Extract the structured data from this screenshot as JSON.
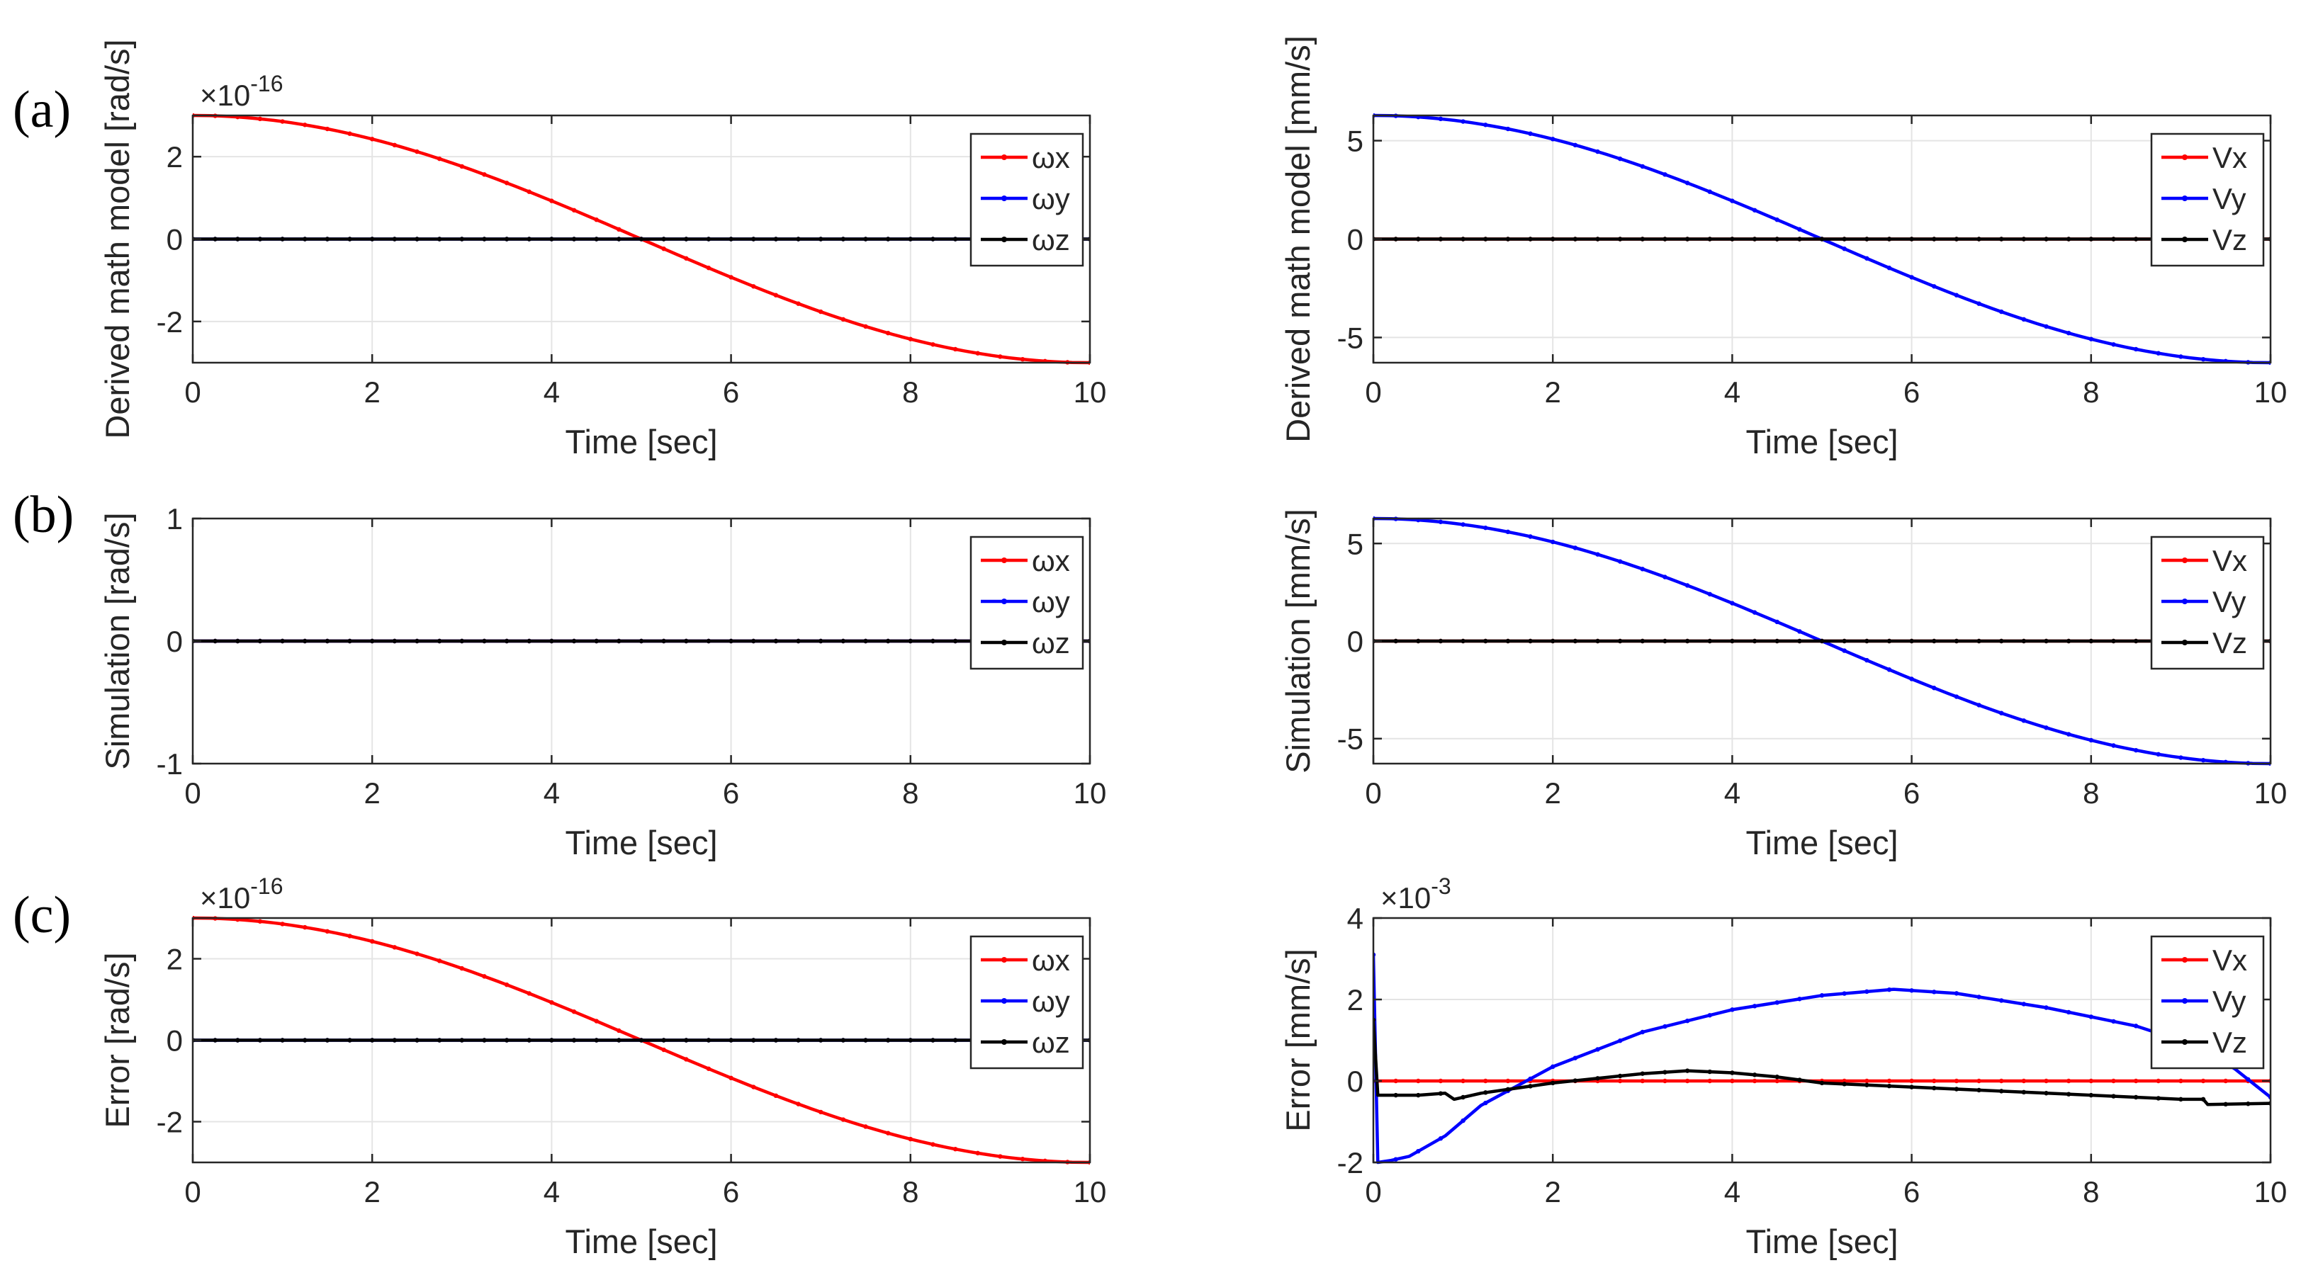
{
  "panel_labels": [
    "(a)",
    "(b)",
    "(c)"
  ],
  "chart_data": [
    {
      "type": "line",
      "title": "",
      "xlabel": "Time [sec]",
      "ylabel": "Derived math model [rad/s]",
      "exponent": "×10-16",
      "xlim": [
        0,
        10
      ],
      "ylim": [
        -3,
        3
      ],
      "xticks": [
        "0",
        "2",
        "4",
        "6",
        "8",
        "10"
      ],
      "yticks": [
        {
          "v": -2,
          "label": "-2"
        },
        {
          "v": 0,
          "label": "0"
        },
        {
          "v": 2,
          "label": "2"
        }
      ],
      "legend": [
        "ωx",
        "ωy",
        "ωz"
      ],
      "series": [
        {
          "name": "ωx",
          "color": "#ff0000",
          "kind": "cos",
          "amp": 3
        },
        {
          "name": "ωy",
          "color": "#0000ff",
          "kind": "zero"
        },
        {
          "name": "ωz",
          "color": "#000000",
          "kind": "zero"
        }
      ]
    },
    {
      "type": "line",
      "title": "",
      "xlabel": "Time [sec]",
      "ylabel": "Derived math model [mm/s]",
      "exponent": "",
      "xlim": [
        0,
        10
      ],
      "ylim": [
        -6.28,
        6.28
      ],
      "xticks": [
        "0",
        "2",
        "4",
        "6",
        "8",
        "10"
      ],
      "yticks": [
        {
          "v": -5,
          "label": "-5"
        },
        {
          "v": 0,
          "label": "0"
        },
        {
          "v": 5,
          "label": "5"
        }
      ],
      "legend": [
        "Vx",
        "Vy",
        "Vz"
      ],
      "series": [
        {
          "name": "Vx",
          "color": "#ff0000",
          "kind": "zero"
        },
        {
          "name": "Vy",
          "color": "#0000ff",
          "kind": "cos",
          "amp": 6.28
        },
        {
          "name": "Vz",
          "color": "#000000",
          "kind": "zero"
        }
      ]
    },
    {
      "type": "line",
      "title": "",
      "xlabel": "Time [sec]",
      "ylabel": "Simulation [rad/s]",
      "exponent": "",
      "xlim": [
        0,
        10
      ],
      "ylim": [
        -1,
        1
      ],
      "xticks": [
        "0",
        "2",
        "4",
        "6",
        "8",
        "10"
      ],
      "yticks": [
        {
          "v": -1,
          "label": "-1"
        },
        {
          "v": 0,
          "label": "0"
        },
        {
          "v": 1,
          "label": "1"
        }
      ],
      "legend": [
        "ωx",
        "ωy",
        "ωz"
      ],
      "series": [
        {
          "name": "ωx",
          "color": "#ff0000",
          "kind": "zero"
        },
        {
          "name": "ωy",
          "color": "#0000ff",
          "kind": "zero"
        },
        {
          "name": "ωz",
          "color": "#000000",
          "kind": "zero"
        }
      ]
    },
    {
      "type": "line",
      "title": "",
      "xlabel": "Time [sec]",
      "ylabel": "Simulation [mm/s]",
      "exponent": "",
      "xlim": [
        0,
        10
      ],
      "ylim": [
        -6.28,
        6.28
      ],
      "xticks": [
        "0",
        "2",
        "4",
        "6",
        "8",
        "10"
      ],
      "yticks": [
        {
          "v": -5,
          "label": "-5"
        },
        {
          "v": 0,
          "label": "0"
        },
        {
          "v": 5,
          "label": "5"
        }
      ],
      "legend": [
        "Vx",
        "Vy",
        "Vz"
      ],
      "series": [
        {
          "name": "Vx",
          "color": "#ff0000",
          "kind": "zero"
        },
        {
          "name": "Vy",
          "color": "#0000ff",
          "kind": "cos",
          "amp": 6.28
        },
        {
          "name": "Vz",
          "color": "#000000",
          "kind": "zero"
        }
      ]
    },
    {
      "type": "line",
      "title": "",
      "xlabel": "Time [sec]",
      "ylabel": "Error [rad/s]",
      "exponent": "×10-16",
      "xlim": [
        0,
        10
      ],
      "ylim": [
        -3,
        3
      ],
      "xticks": [
        "0",
        "2",
        "4",
        "6",
        "8",
        "10"
      ],
      "yticks": [
        {
          "v": -2,
          "label": "-2"
        },
        {
          "v": 0,
          "label": "0"
        },
        {
          "v": 2,
          "label": "2"
        }
      ],
      "legend": [
        "ωx",
        "ωy",
        "ωz"
      ],
      "series": [
        {
          "name": "ωx",
          "color": "#ff0000",
          "kind": "cos",
          "amp": 3
        },
        {
          "name": "ωy",
          "color": "#0000ff",
          "kind": "zero"
        },
        {
          "name": "ωz",
          "color": "#000000",
          "kind": "zero"
        }
      ]
    },
    {
      "type": "line",
      "title": "",
      "xlabel": "Time [sec]",
      "ylabel": "Error [mm/s]",
      "exponent": "×10-3",
      "xlim": [
        0,
        10
      ],
      "ylim": [
        -2,
        4
      ],
      "xticks": [
        "0",
        "2",
        "4",
        "6",
        "8",
        "10"
      ],
      "yticks": [
        {
          "v": -2,
          "label": "-2"
        },
        {
          "v": 0,
          "label": "0"
        },
        {
          "v": 2,
          "label": "2"
        },
        {
          "v": 4,
          "label": "4"
        }
      ],
      "legend": [
        "Vx",
        "Vy",
        "Vz"
      ],
      "series": [
        {
          "name": "Vx",
          "color": "#ff0000",
          "kind": "zero"
        },
        {
          "name": "Vy",
          "color": "#0000ff",
          "kind": "points",
          "points": [
            [
              0,
              3.1
            ],
            [
              0.05,
              -2.0
            ],
            [
              0.2,
              -1.95
            ],
            [
              0.4,
              -1.85
            ],
            [
              0.8,
              -1.35
            ],
            [
              1.2,
              -0.6
            ],
            [
              2.0,
              0.35
            ],
            [
              3.0,
              1.2
            ],
            [
              4.0,
              1.75
            ],
            [
              5.0,
              2.1
            ],
            [
              5.8,
              2.25
            ],
            [
              6.5,
              2.15
            ],
            [
              7.5,
              1.8
            ],
            [
              8.5,
              1.35
            ],
            [
              9.2,
              0.85
            ],
            [
              9.6,
              0.3
            ],
            [
              10.0,
              -0.4
            ]
          ]
        },
        {
          "name": "Vz",
          "color": "#000000",
          "kind": "points",
          "points": [
            [
              0,
              1.5
            ],
            [
              0.05,
              -0.35
            ],
            [
              0.5,
              -0.35
            ],
            [
              0.8,
              -0.3
            ],
            [
              0.9,
              -0.45
            ],
            [
              1.2,
              -0.3
            ],
            [
              2.0,
              -0.05
            ],
            [
              3.0,
              0.18
            ],
            [
              3.5,
              0.25
            ],
            [
              4.0,
              0.2
            ],
            [
              4.5,
              0.1
            ],
            [
              5.0,
              -0.05
            ],
            [
              6.0,
              -0.15
            ],
            [
              7.0,
              -0.25
            ],
            [
              8.0,
              -0.35
            ],
            [
              9.0,
              -0.45
            ],
            [
              9.25,
              -0.45
            ],
            [
              9.3,
              -0.58
            ],
            [
              10.0,
              -0.55
            ]
          ]
        }
      ]
    }
  ]
}
